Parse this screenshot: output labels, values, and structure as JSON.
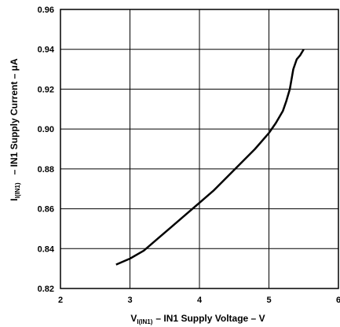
{
  "chart_data": {
    "type": "line",
    "xlabel": {
      "symbol": "V",
      "subscript": "I(IN1)",
      "text": "– IN1 Supply Voltage – V"
    },
    "ylabel": {
      "symbol": "I",
      "subscript": "I(IN1)",
      "text": "– IN1 Supply Current – μA"
    },
    "xlim": [
      2,
      6
    ],
    "ylim": [
      0.82,
      0.96
    ],
    "xticks": [
      2,
      3,
      4,
      5,
      6
    ],
    "xtick_labels": [
      "2",
      "3",
      "4",
      "5",
      "6"
    ],
    "yticks": [
      0.82,
      0.84,
      0.86,
      0.88,
      0.9,
      0.92,
      0.94,
      0.96
    ],
    "ytick_labels": [
      "0.82",
      "0.84",
      "0.86",
      "0.88",
      "0.90",
      "0.92",
      "0.94",
      "0.96"
    ],
    "grid": true,
    "series": [
      {
        "color": "#000000",
        "x": [
          2.8,
          3.0,
          3.2,
          3.4,
          3.6,
          3.8,
          4.0,
          4.2,
          4.4,
          4.6,
          4.8,
          5.0,
          5.1,
          5.2,
          5.25,
          5.3,
          5.35,
          5.4,
          5.45,
          5.5
        ],
        "y": [
          0.832,
          0.835,
          0.839,
          0.845,
          0.851,
          0.857,
          0.863,
          0.869,
          0.876,
          0.883,
          0.89,
          0.898,
          0.903,
          0.909,
          0.914,
          0.92,
          0.93,
          0.935,
          0.937,
          0.94
        ]
      }
    ]
  }
}
